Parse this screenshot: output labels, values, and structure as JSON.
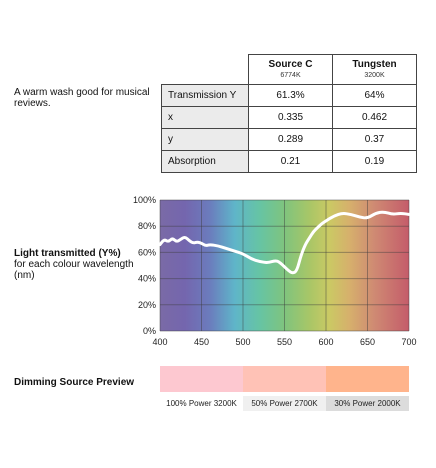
{
  "caption": "A warm wash good for musical reviews.",
  "table": {
    "columns": [
      {
        "name": "Source C",
        "sub": "6774K"
      },
      {
        "name": "Tungsten",
        "sub": "3200K"
      }
    ],
    "rows": [
      {
        "label": "Transmission Y",
        "values": [
          "61.3%",
          "64%"
        ]
      },
      {
        "label": "x",
        "values": [
          "0.335",
          "0.462"
        ]
      },
      {
        "label": "y",
        "values": [
          "0.289",
          "0.37"
        ]
      },
      {
        "label": "Absorption",
        "values": [
          "0.21",
          "0.19"
        ]
      }
    ]
  },
  "chart_label": {
    "title": "Light transmitted (Y%)",
    "subtitle": "for each colour wavelength (nm)"
  },
  "chart_data": {
    "type": "line",
    "title": "",
    "xlabel": "",
    "ylabel": "",
    "xlim": [
      400,
      700
    ],
    "ylim": [
      0,
      100
    ],
    "x_ticks": [
      "400",
      "450",
      "500",
      "550",
      "600",
      "650",
      "700"
    ],
    "y_ticks": [
      "0%",
      "20%",
      "40%",
      "60%",
      "80%",
      "100%"
    ],
    "grid": true,
    "background": "visible spectrum gradient",
    "series": [
      {
        "color": "#ffffff",
        "x": [
          400,
          405,
          410,
          415,
          420,
          425,
          430,
          435,
          440,
          445,
          450,
          455,
          460,
          470,
          480,
          490,
          500,
          510,
          520,
          530,
          540,
          545,
          550,
          555,
          560,
          565,
          570,
          575,
          580,
          585,
          590,
          595,
          600,
          610,
          620,
          630,
          640,
          650,
          660,
          670,
          680,
          690,
          700
        ],
        "y": [
          66,
          70,
          68,
          71,
          68,
          70,
          72,
          69,
          67,
          68,
          67,
          65,
          66,
          65,
          63,
          61,
          59,
          55,
          53,
          52,
          54,
          52,
          49,
          46,
          44,
          46,
          58,
          66,
          71,
          76,
          79,
          82,
          84,
          88,
          90,
          89,
          87,
          86,
          90,
          91,
          89,
          90,
          89
        ]
      }
    ]
  },
  "dimming": {
    "title": "Dimming Source Preview",
    "swatches": [
      {
        "label": "100% Power 3200K",
        "color": "#fdc8d0",
        "label_bg": "#ffffff"
      },
      {
        "label": "50% Power 2700K",
        "color": "#ffc2b6",
        "label_bg": "#f0f0f0"
      },
      {
        "label": "30% Power 2000K",
        "color": "#ffb48c",
        "label_bg": "#dcdcdc"
      }
    ]
  }
}
